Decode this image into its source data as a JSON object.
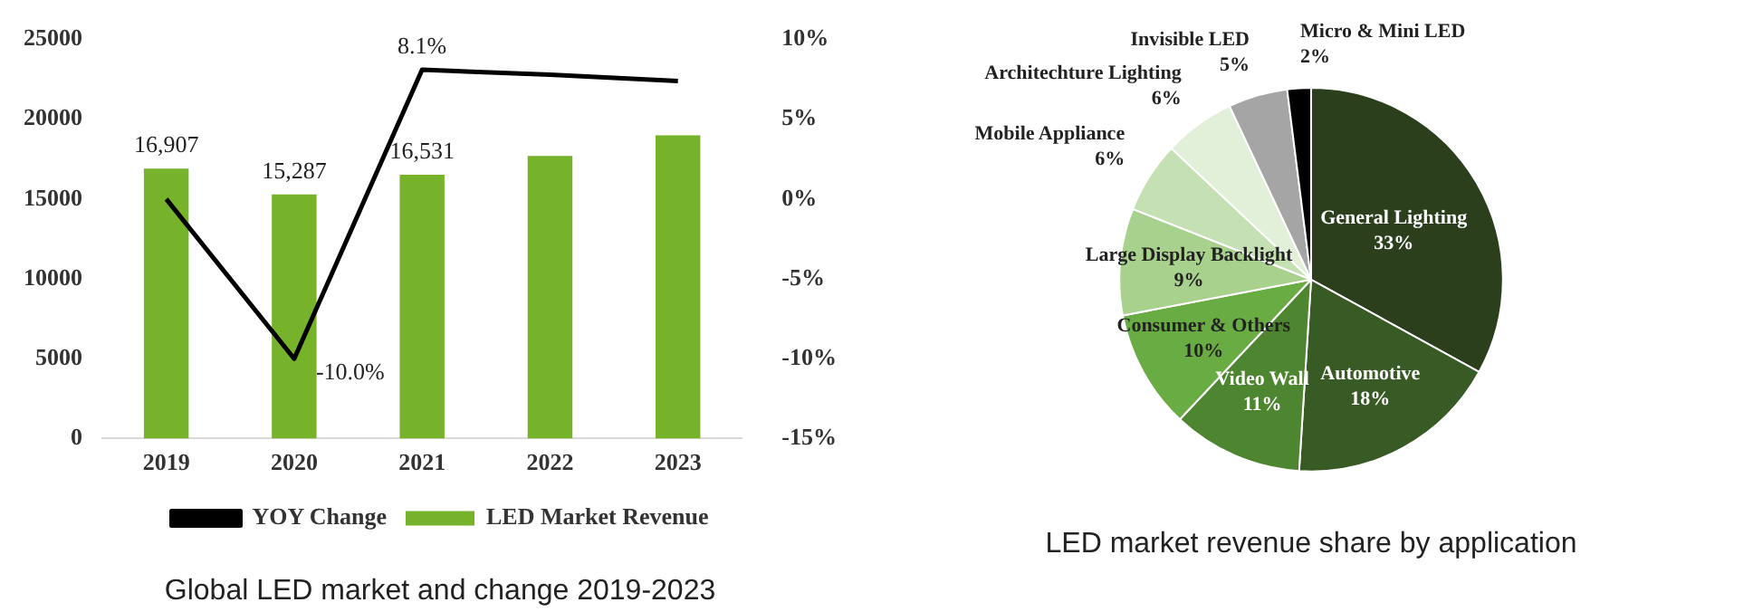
{
  "chart_data": [
    {
      "type": "bar",
      "title": "Global LED market and change 2019-2023",
      "categories": [
        "2019",
        "2020",
        "2021",
        "2022",
        "2023"
      ],
      "series": [
        {
          "name": "LED Market Revenue",
          "type": "bar",
          "color": "#76b22a",
          "values": [
            16907,
            15287,
            16531,
            17700,
            19000
          ],
          "value_labels": [
            "16,907",
            "15,287",
            "16,531",
            null,
            null
          ]
        },
        {
          "name": "YOY Change",
          "type": "line",
          "axis": "y2",
          "color": "#000000",
          "values": [
            0,
            -10.0,
            8.1,
            7.8,
            7.4
          ],
          "value_labels": [
            null,
            "-10.0%",
            "8.1%",
            null,
            null
          ]
        }
      ],
      "ylim": [
        0,
        25000
      ],
      "yticks": [
        0,
        5000,
        10000,
        15000,
        20000,
        25000
      ],
      "y2lim": [
        -15,
        10
      ],
      "y2ticks": [
        {
          "value": -15,
          "label": "-15%"
        },
        {
          "value": -10,
          "label": "-10%"
        },
        {
          "value": -5,
          "label": "-5%"
        },
        {
          "value": 0,
          "label": "0%"
        },
        {
          "value": 5,
          "label": "5%"
        },
        {
          "value": 10,
          "label": "10%"
        }
      ],
      "grid": false,
      "legend": "bottom",
      "marker": "none",
      "line_style": "solid"
    },
    {
      "type": "pie",
      "title": "LED market revenue share by application",
      "categories": [
        "General Lighting",
        "Automotive",
        "Video Wall",
        "Consumer & Others",
        "Large Display Backlight",
        "Mobile Appliance",
        "Architechture Lighting",
        "Invisible LED",
        "Micro & Mini LED"
      ],
      "values": [
        33,
        18,
        11,
        10,
        9,
        6,
        6,
        5,
        2
      ],
      "value_labels": [
        "33%",
        "18%",
        "11%",
        "10%",
        "9%",
        "6%",
        "6%",
        "5%",
        "2%"
      ],
      "colors": [
        "#2c3f1d",
        "#385a24",
        "#4e8530",
        "#6aac44",
        "#a9d18e",
        "#c5e0b3",
        "#e2efd9",
        "#a5a5a5",
        "#000000"
      ],
      "legend": false
    }
  ]
}
